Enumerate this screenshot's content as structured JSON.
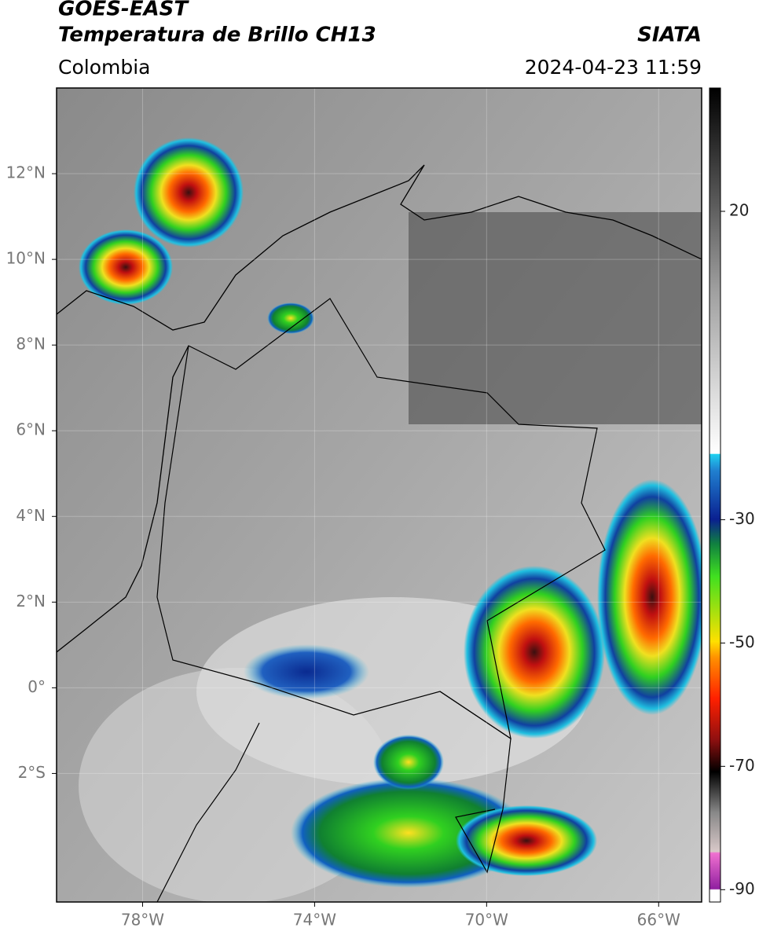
{
  "header": {
    "title": "GOES-EAST",
    "subtitle": "Temperatura de Brillo CH13",
    "source": "SIATA",
    "region": "Colombia",
    "datetime": "2024-04-23 11:59"
  },
  "map": {
    "xlim": [
      -80,
      -65
    ],
    "ylim": [
      -5,
      14
    ],
    "xticks": [
      {
        "value": -78,
        "label": "78°W"
      },
      {
        "value": -74,
        "label": "74°W"
      },
      {
        "value": -70,
        "label": "70°W"
      },
      {
        "value": -66,
        "label": "66°W"
      }
    ],
    "yticks": [
      {
        "value": 12,
        "label": "12°N"
      },
      {
        "value": 10,
        "label": "10°N"
      },
      {
        "value": 8,
        "label": "8°N"
      },
      {
        "value": 6,
        "label": "6°N"
      },
      {
        "value": 4,
        "label": "4°N"
      },
      {
        "value": 2,
        "label": "2°N"
      },
      {
        "value": 0,
        "label": "0°"
      },
      {
        "value": -2,
        "label": "2°S"
      }
    ],
    "grid": true
  },
  "colorbar": {
    "lim": [
      -92,
      40
    ],
    "ticks": [
      20,
      -30,
      -50,
      -70,
      -90
    ]
  }
}
